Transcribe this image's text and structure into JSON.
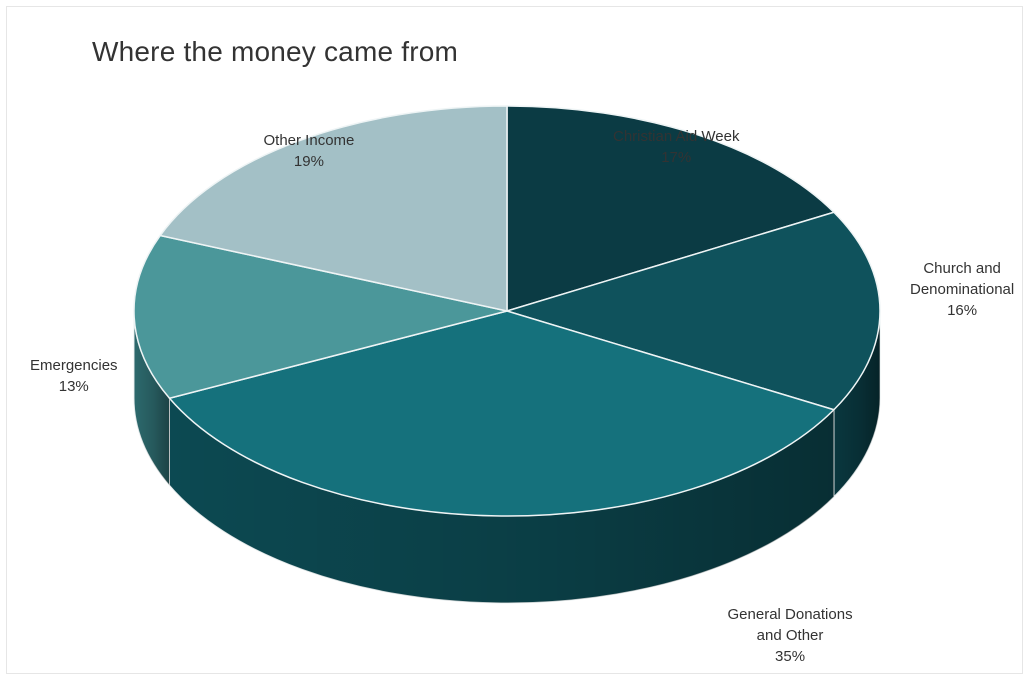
{
  "chart_data": {
    "type": "pie",
    "title": "Where the money came from",
    "unit": "%",
    "style": "3d",
    "slices": [
      {
        "label_lines": [
          "Christian Aid Week"
        ],
        "value": 17,
        "display": "17%",
        "color": "#0b3b44",
        "side_color": "#072a30"
      },
      {
        "label_lines": [
          "Church and",
          "Denominational"
        ],
        "value": 16,
        "display": "16%",
        "color": "#0f525c",
        "side_color": "#0a3a42"
      },
      {
        "label_lines": [
          "General Donations",
          "and Other"
        ],
        "value": 35,
        "display": "35%",
        "color": "#15717c",
        "side_color": "#0d4d56"
      },
      {
        "label_lines": [
          "Emergencies"
        ],
        "value": 13,
        "display": "13%",
        "color": "#4b979a",
        "side_color": "#2f6f73"
      },
      {
        "label_lines": [
          "Other Income"
        ],
        "value": 19,
        "display": "19%",
        "color": "#a3c0c6",
        "side_color": "#7a9ba2"
      }
    ]
  }
}
